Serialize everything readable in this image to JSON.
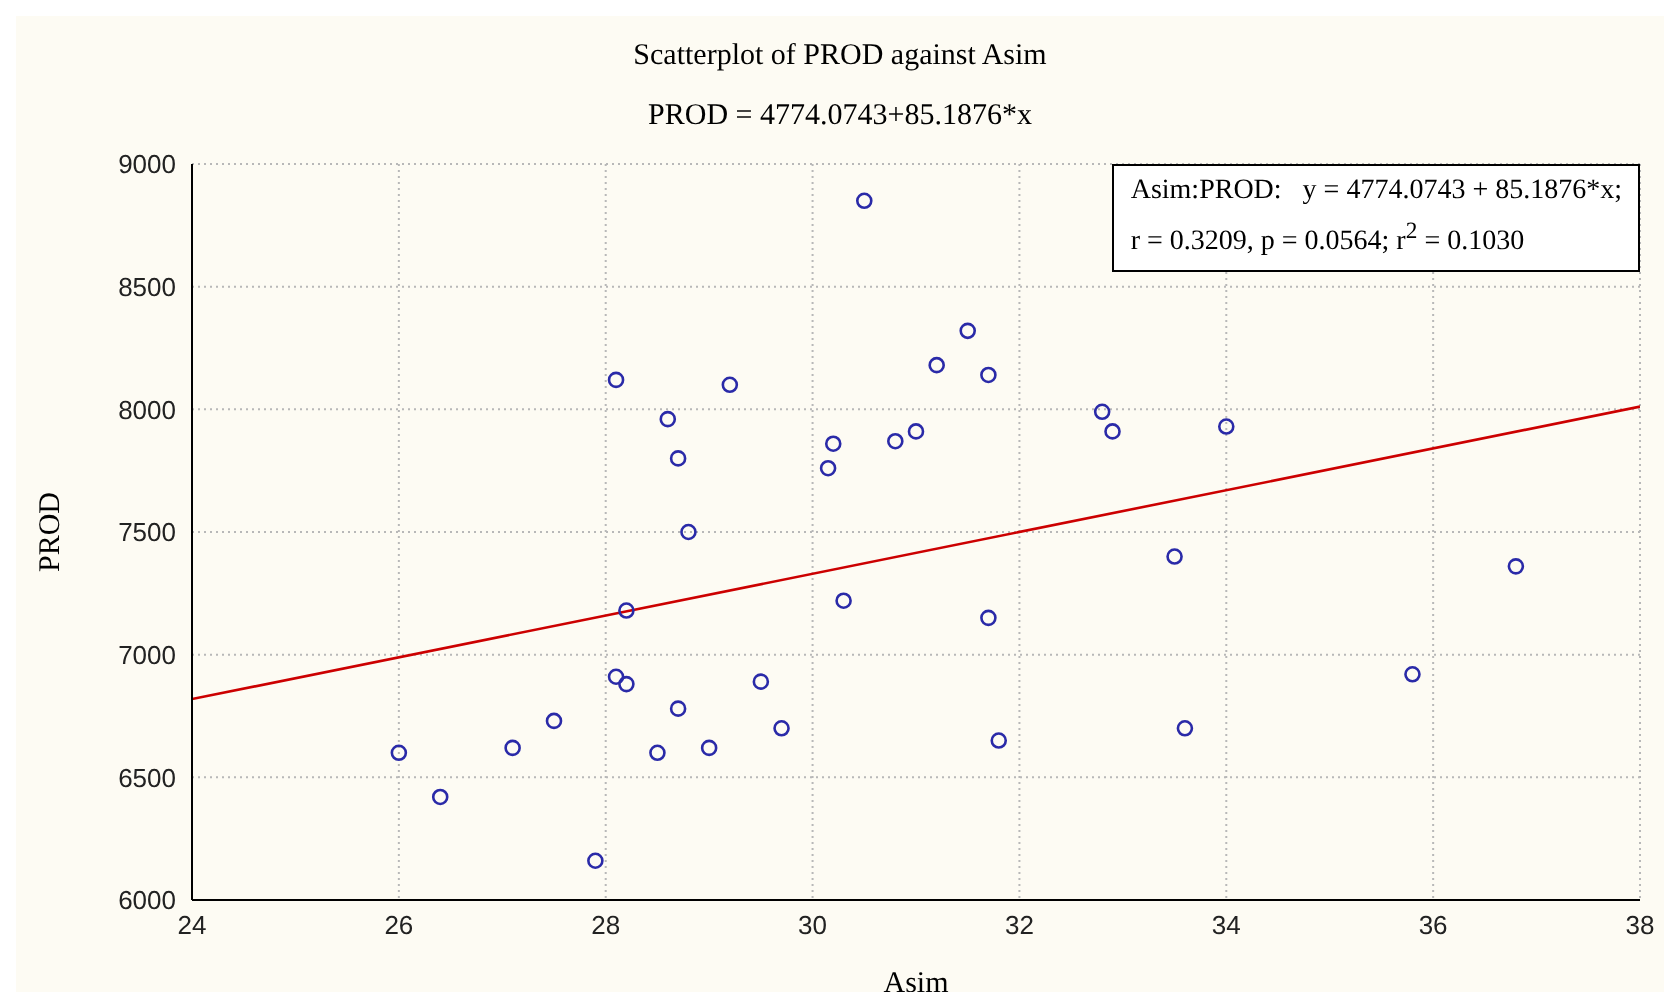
{
  "chart_data": {
    "type": "scatter",
    "title": "Scatterplot of PROD against Asim",
    "subtitle": "PROD = 4774.0743+85.1876*x",
    "xlabel": "Asim",
    "ylabel": "PROD",
    "annotations": [
      "Asim:PROD:   y = 4774.0743 + 85.1876*x;",
      "r = 0.3209, p = 0.0564; r$^{2}$ = 0.1030"
    ],
    "xlim": [
      24,
      38
    ],
    "xticks": [
      24,
      26,
      28,
      30,
      32,
      34,
      36,
      38
    ],
    "ylim": [
      6000,
      9000
    ],
    "yticks": [
      6000,
      6500,
      7000,
      7500,
      8000,
      8500,
      9000
    ],
    "grid": true,
    "marker": "circle",
    "series": [
      {
        "color": "#2a2aa8",
        "x": [
          26.0,
          26.4,
          27.1,
          27.5,
          27.9,
          28.1,
          28.2,
          28.2,
          28.1,
          28.6,
          28.7,
          28.8,
          28.5,
          28.7,
          29.0,
          29.2,
          29.5,
          29.7,
          30.15,
          30.2,
          30.3,
          30.5,
          30.8,
          31.0,
          31.2,
          31.5,
          31.7,
          31.7,
          31.8,
          32.8,
          32.9,
          33.5,
          33.6,
          34.0,
          35.8,
          36.8
        ],
        "values": [
          6600,
          6420,
          6620,
          6730,
          6160,
          6910,
          6880,
          7180,
          8120,
          7960,
          7800,
          7500,
          6600,
          6780,
          6620,
          8100,
          6890,
          6700,
          7760,
          7860,
          7220,
          8850,
          7870,
          7910,
          8180,
          8320,
          8140,
          7150,
          6650,
          7990,
          7910,
          7400,
          6700,
          7930,
          6920,
          7360
        ]
      },
      {
        "type": "line",
        "color": "#cc0000",
        "line_style": "solid",
        "marker": "none",
        "x": [
          24,
          38
        ],
        "values": [
          6819,
          8011
        ]
      }
    ]
  }
}
